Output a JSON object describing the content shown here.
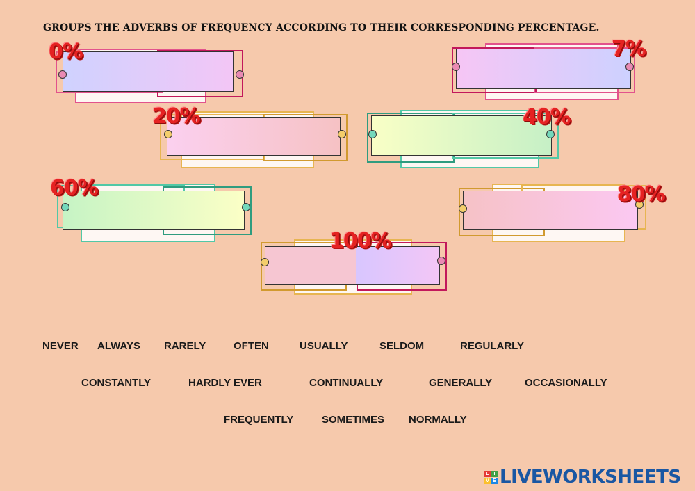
{
  "instruction": "GROUPS THE ADVERBS OF FREQUENCY ACCORDING TO THEIR CORRESPONDING PERCENTAGE.",
  "drop_zones": [
    {
      "label": "0%"
    },
    {
      "label": "7%"
    },
    {
      "label": "20%"
    },
    {
      "label": "40%"
    },
    {
      "label": "60%"
    },
    {
      "label": "80%"
    },
    {
      "label": "100%"
    }
  ],
  "word_bank": [
    "NEVER",
    "ALWAYS",
    "RARELY",
    "OFTEN",
    "USUALLY",
    "SELDOM",
    "REGULARLY",
    "CONSTANTLY",
    "HARDLY EVER",
    "CONTINUALLY",
    "GENERALLY",
    "OCCASIONALLY",
    "FREQUENTLY",
    "SOMETIMES",
    "NORMALLY"
  ],
  "logo": {
    "text": "LIVEWORKSHEETS",
    "badge_letters": [
      "L",
      "I",
      "V",
      "E"
    ]
  },
  "colors": {
    "background": "#f6c9ac",
    "percent_red": "#e52222",
    "pink_frame": "#d63c7a",
    "orange_frame": "#e3a94a",
    "teal_frame": "#52c8a6",
    "logo_blue": "#1a57a3"
  }
}
